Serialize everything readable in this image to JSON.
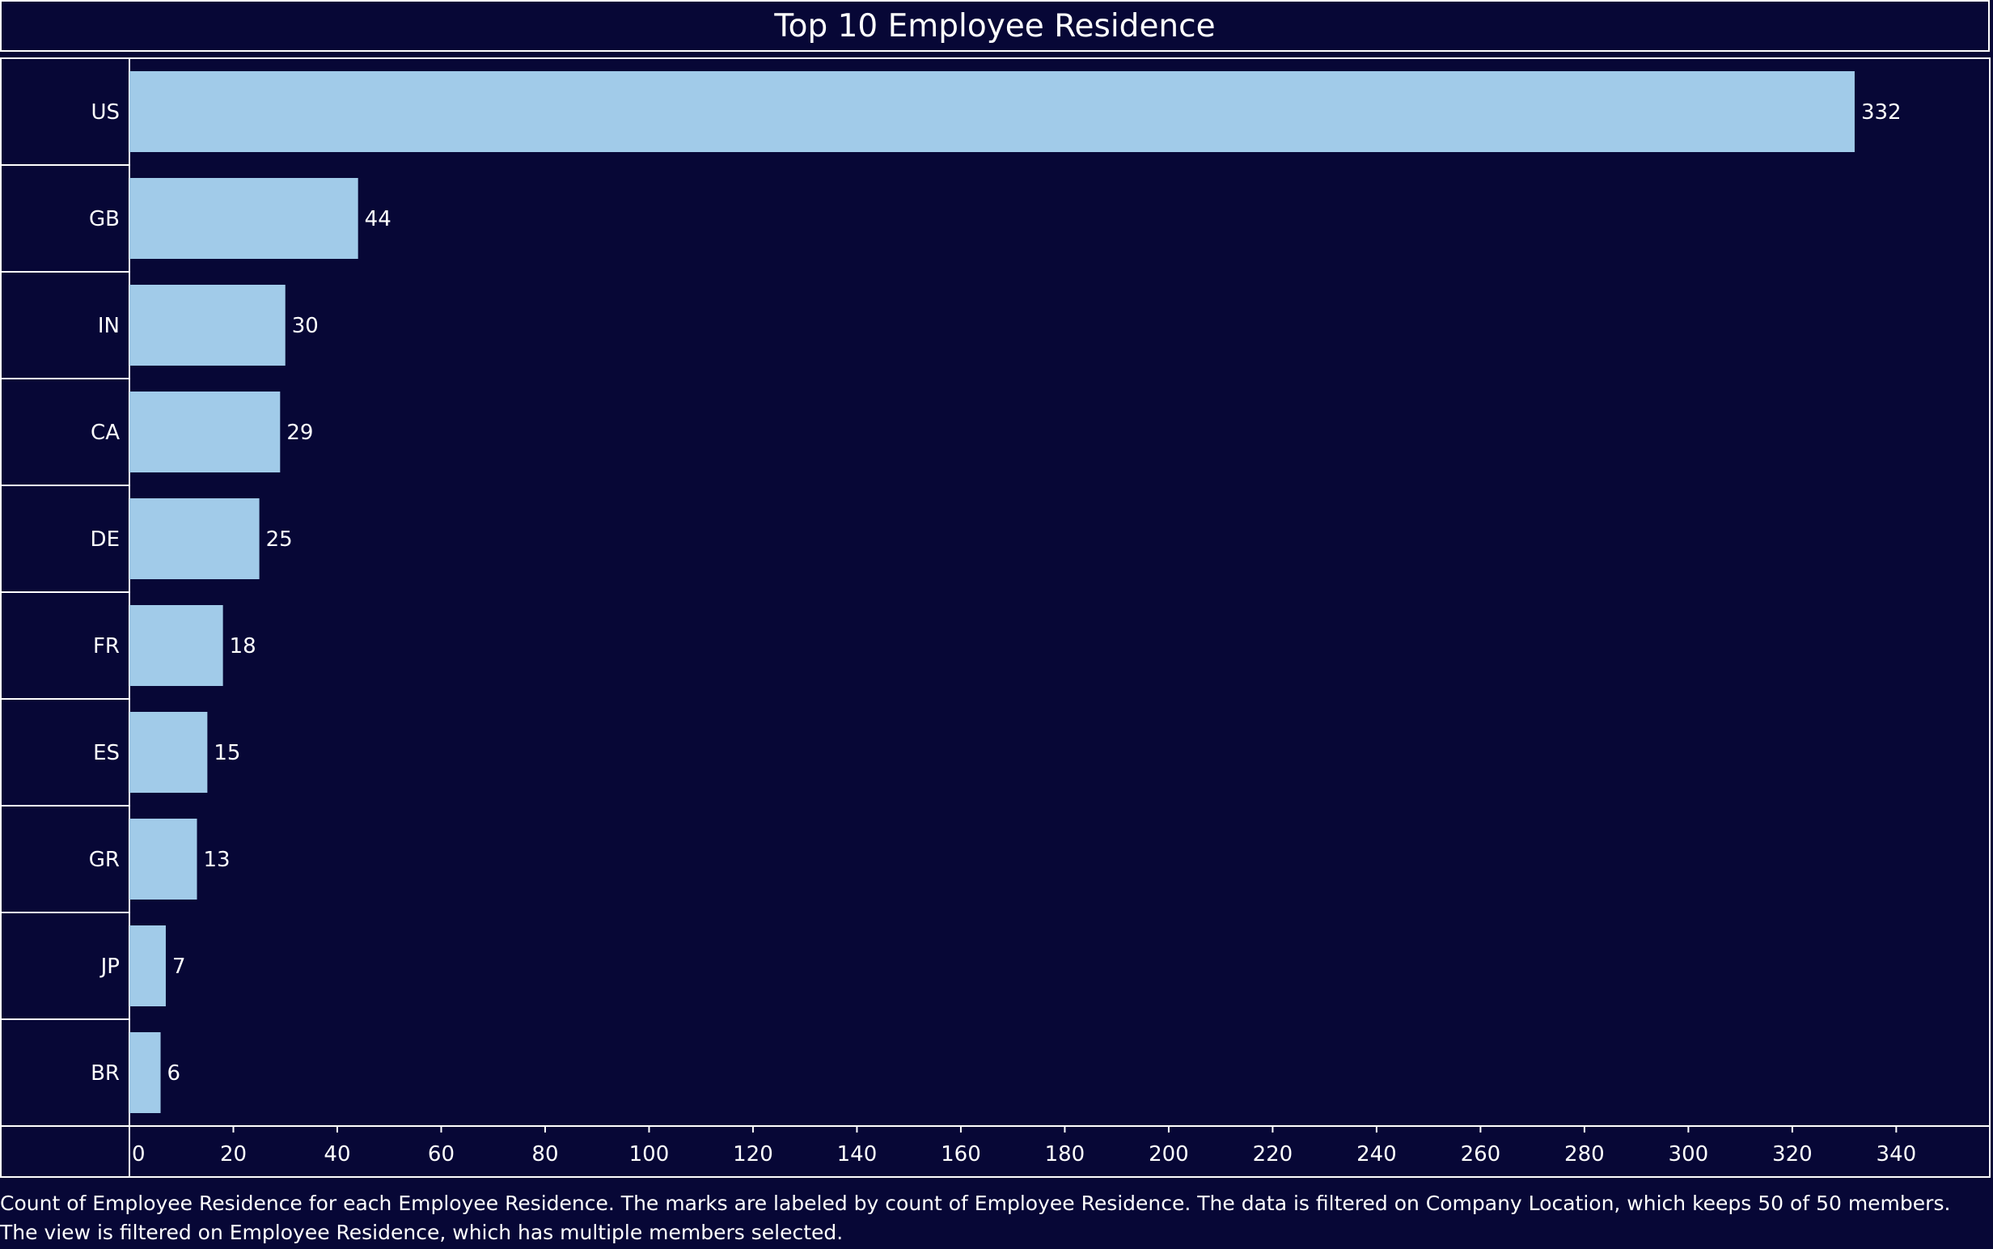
{
  "chart_data": {
    "type": "bar",
    "orientation": "horizontal",
    "title": "Top 10 Employee Residence",
    "categories": [
      "US",
      "GB",
      "IN",
      "CA",
      "DE",
      "FR",
      "ES",
      "GR",
      "JP",
      "BR"
    ],
    "values": [
      332,
      44,
      30,
      29,
      25,
      18,
      15,
      13,
      7,
      6
    ],
    "xlim": [
      0,
      358
    ],
    "xticks": [
      0,
      20,
      40,
      60,
      80,
      100,
      120,
      140,
      160,
      180,
      200,
      220,
      240,
      260,
      280,
      300,
      320,
      340
    ],
    "data_labels": true,
    "grid": false,
    "colors": {
      "background": "#070736",
      "bar": "#a1cbe9",
      "text": "#ffffff",
      "lines": "#ffffff"
    }
  },
  "caption": "Count of Employee Residence for each Employee Residence.  The marks are labeled by count of Employee Residence. The data is filtered on Company Location, which keeps 50 of 50 members. The view is filtered on Employee Residence, which has multiple members selected."
}
